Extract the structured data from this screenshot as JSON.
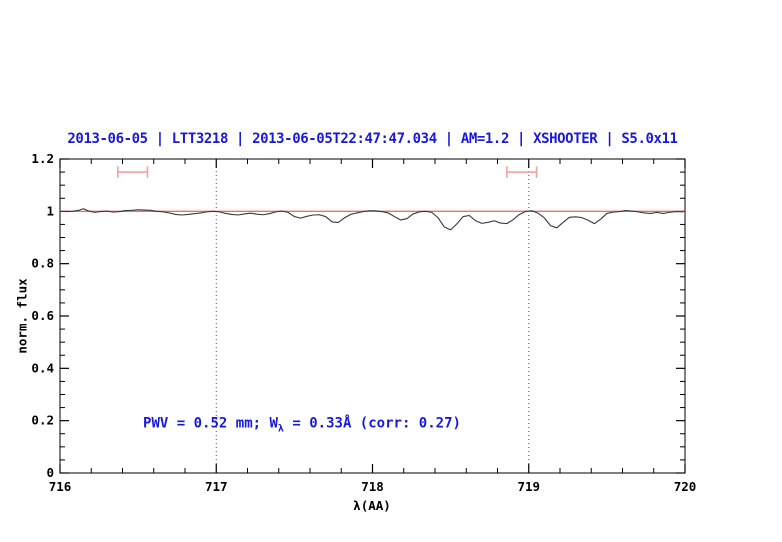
{
  "title": {
    "text": "2013-06-05 | LTT3218 | 2013-06-05T22:47:47.034 | AM=1.2 | XSHOOTER | S5.0x11",
    "color": "#1919d7"
  },
  "annotation": {
    "prefix": "PWV = 0.52 mm; W",
    "subscript": "λ",
    "suffix": " = 0.33Å (corr: 0.27)",
    "x_center": 717.55,
    "y_center": 0.185,
    "color": "#1919d7"
  },
  "chart_data": {
    "type": "line",
    "title": "2013-06-05 | LTT3218 | 2013-06-05T22:47:47.034 | AM=1.2 | XSHOOTER | S5.0x11",
    "xlabel": "λ(AA)",
    "ylabel": "norm. flux",
    "xlim": [
      716,
      720
    ],
    "ylim": [
      0,
      1.2
    ],
    "x_major_ticks": [
      716,
      717,
      718,
      719,
      720
    ],
    "x_major_labels": [
      "716",
      "717",
      "718",
      "719",
      "720"
    ],
    "x_minor_step": 0.2,
    "y_major_ticks": [
      0,
      0.2,
      0.4,
      0.6,
      0.8,
      1,
      1.2
    ],
    "y_major_labels": [
      "0",
      "0.2",
      "0.4",
      "0.6",
      "0.8",
      "1",
      "1.2"
    ],
    "y_minor_step": 0.05,
    "grid": false,
    "dotted_vlines": {
      "x_values": [
        717,
        719
      ],
      "color": "#555555"
    },
    "continuum_line": {
      "y": 1.0,
      "color": "#ef6f6f"
    },
    "range_markers": {
      "color": "#f4a1a1",
      "y": 1.15,
      "cap_halfheight": 0.022,
      "intervals": [
        {
          "x1": 716.37,
          "x2": 716.56
        },
        {
          "x1": 718.86,
          "x2": 719.05
        }
      ]
    },
    "series": [
      {
        "name": "normalized-spectrum",
        "color": "#383838",
        "points": [
          [
            716.0,
            1.0
          ],
          [
            716.04,
            0.999
          ],
          [
            716.08,
            1.0
          ],
          [
            716.12,
            1.004
          ],
          [
            716.15,
            1.01
          ],
          [
            716.18,
            1.002
          ],
          [
            716.22,
            0.996
          ],
          [
            716.26,
            0.999
          ],
          [
            716.3,
            1.001
          ],
          [
            716.34,
            0.997
          ],
          [
            716.38,
            0.999
          ],
          [
            716.42,
            1.003
          ],
          [
            716.46,
            1.004
          ],
          [
            716.5,
            1.006
          ],
          [
            716.54,
            1.005
          ],
          [
            716.58,
            1.004
          ],
          [
            716.62,
            1.0
          ],
          [
            716.66,
            0.998
          ],
          [
            716.7,
            0.994
          ],
          [
            716.74,
            0.988
          ],
          [
            716.78,
            0.986
          ],
          [
            716.82,
            0.988
          ],
          [
            716.86,
            0.991
          ],
          [
            716.9,
            0.994
          ],
          [
            716.94,
            0.998
          ],
          [
            716.98,
            1.0
          ],
          [
            717.02,
            0.998
          ],
          [
            717.06,
            0.992
          ],
          [
            717.1,
            0.988
          ],
          [
            717.14,
            0.986
          ],
          [
            717.18,
            0.99
          ],
          [
            717.22,
            0.993
          ],
          [
            717.26,
            0.989
          ],
          [
            717.3,
            0.987
          ],
          [
            717.34,
            0.991
          ],
          [
            717.38,
            0.998
          ],
          [
            717.42,
            1.001
          ],
          [
            717.46,
            0.996
          ],
          [
            717.5,
            0.98
          ],
          [
            717.54,
            0.974
          ],
          [
            717.58,
            0.981
          ],
          [
            717.62,
            0.986
          ],
          [
            717.66,
            0.987
          ],
          [
            717.7,
            0.98
          ],
          [
            717.74,
            0.96
          ],
          [
            717.78,
            0.957
          ],
          [
            717.82,
            0.975
          ],
          [
            717.86,
            0.988
          ],
          [
            717.9,
            0.994
          ],
          [
            717.94,
            0.999
          ],
          [
            717.98,
            1.002
          ],
          [
            718.02,
            1.002
          ],
          [
            718.06,
            0.999
          ],
          [
            718.1,
            0.994
          ],
          [
            718.14,
            0.98
          ],
          [
            718.18,
            0.967
          ],
          [
            718.22,
            0.972
          ],
          [
            718.26,
            0.99
          ],
          [
            718.3,
            0.998
          ],
          [
            718.34,
            1.0
          ],
          [
            718.38,
            0.996
          ],
          [
            718.42,
            0.975
          ],
          [
            718.46,
            0.94
          ],
          [
            718.5,
            0.929
          ],
          [
            718.54,
            0.952
          ],
          [
            718.58,
            0.98
          ],
          [
            718.62,
            0.984
          ],
          [
            718.66,
            0.964
          ],
          [
            718.7,
            0.954
          ],
          [
            718.74,
            0.958
          ],
          [
            718.78,
            0.964
          ],
          [
            718.82,
            0.955
          ],
          [
            718.86,
            0.953
          ],
          [
            718.9,
            0.968
          ],
          [
            718.94,
            0.988
          ],
          [
            718.98,
            1.0
          ],
          [
            719.02,
            1.002
          ],
          [
            719.06,
            0.993
          ],
          [
            719.1,
            0.975
          ],
          [
            719.14,
            0.945
          ],
          [
            719.18,
            0.937
          ],
          [
            719.22,
            0.958
          ],
          [
            719.26,
            0.977
          ],
          [
            719.3,
            0.979
          ],
          [
            719.34,
            0.976
          ],
          [
            719.38,
            0.966
          ],
          [
            719.42,
            0.953
          ],
          [
            719.46,
            0.97
          ],
          [
            719.5,
            0.992
          ],
          [
            719.54,
            0.997
          ],
          [
            719.58,
            0.999
          ],
          [
            719.62,
            1.003
          ],
          [
            719.66,
            1.001
          ],
          [
            719.7,
            0.998
          ],
          [
            719.74,
            0.994
          ],
          [
            719.78,
            0.992
          ],
          [
            719.82,
            0.996
          ],
          [
            719.86,
            0.992
          ],
          [
            719.9,
            0.996
          ],
          [
            719.94,
            0.999
          ],
          [
            719.98,
            0.998
          ],
          [
            720.0,
            1.0
          ]
        ]
      }
    ]
  }
}
